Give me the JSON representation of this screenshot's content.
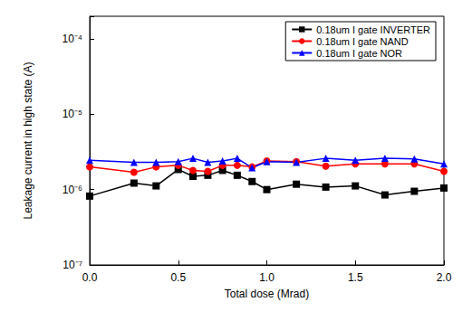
{
  "chart_data": {
    "type": "line",
    "x_label": "Total dose (Mrad)",
    "y_label": "Leakage current in high state (A)",
    "xlim": [
      0,
      2.0
    ],
    "xticks": [
      {
        "value": 0,
        "label": "0.0"
      },
      {
        "value": 0.5,
        "label": "0.5"
      },
      {
        "value": 1.0,
        "label": "1.0"
      },
      {
        "value": 1.5,
        "label": "1.5"
      },
      {
        "value": 2.0,
        "label": "2.0"
      }
    ],
    "ylim": [
      1e-07,
      0.0002
    ],
    "yticks": [
      {
        "value": 1e-07,
        "label": "10⁻⁷"
      },
      {
        "value": 1e-06,
        "label": "10⁻⁶"
      },
      {
        "value": 1e-05,
        "label": "10⁻⁵"
      },
      {
        "value": 0.0001,
        "label": "10⁻⁴"
      }
    ],
    "log": "y",
    "grid": false,
    "legend": "upper right",
    "x": [
      0,
      0.25,
      0.375,
      0.5,
      0.583,
      0.667,
      0.75,
      0.833,
      0.917,
      1.0,
      1.167,
      1.333,
      1.5,
      1.667,
      1.833,
      2.0
    ],
    "series": [
      {
        "name": "0.18um I gate INVERTER",
        "color": "#000000",
        "marker": "square",
        "line_style": "solid",
        "values": [
          8.2e-07,
          1.22e-06,
          1.12e-06,
          1.85e-06,
          1.5e-06,
          1.55e-06,
          1.8e-06,
          1.55e-06,
          1.28e-06,
          1e-06,
          1.18e-06,
          1.08e-06,
          1.12e-06,
          8.5e-07,
          9.5e-07,
          1.05e-06
        ]
      },
      {
        "name": "0.18um I gate NAND",
        "color": "#ff0000",
        "marker": "circle",
        "line_style": "solid",
        "values": [
          2e-06,
          1.7e-06,
          2e-06,
          2.1e-06,
          1.8e-06,
          1.75e-06,
          2.1e-06,
          2.1e-06,
          2e-06,
          2.4e-06,
          2.35e-06,
          2.05e-06,
          2.2e-06,
          2.2e-06,
          2.2e-06,
          1.75e-06
        ]
      },
      {
        "name": "0.18um I gate NOR",
        "color": "#0000ff",
        "marker": "triangle",
        "line_style": "solid",
        "values": [
          2.45e-06,
          2.3e-06,
          2.3e-06,
          2.35e-06,
          2.6e-06,
          2.3e-06,
          2.4e-06,
          2.6e-06,
          1.95e-06,
          2.35e-06,
          2.3e-06,
          2.6e-06,
          2.45e-06,
          2.6e-06,
          2.55e-06,
          2.2e-06
        ]
      }
    ]
  }
}
